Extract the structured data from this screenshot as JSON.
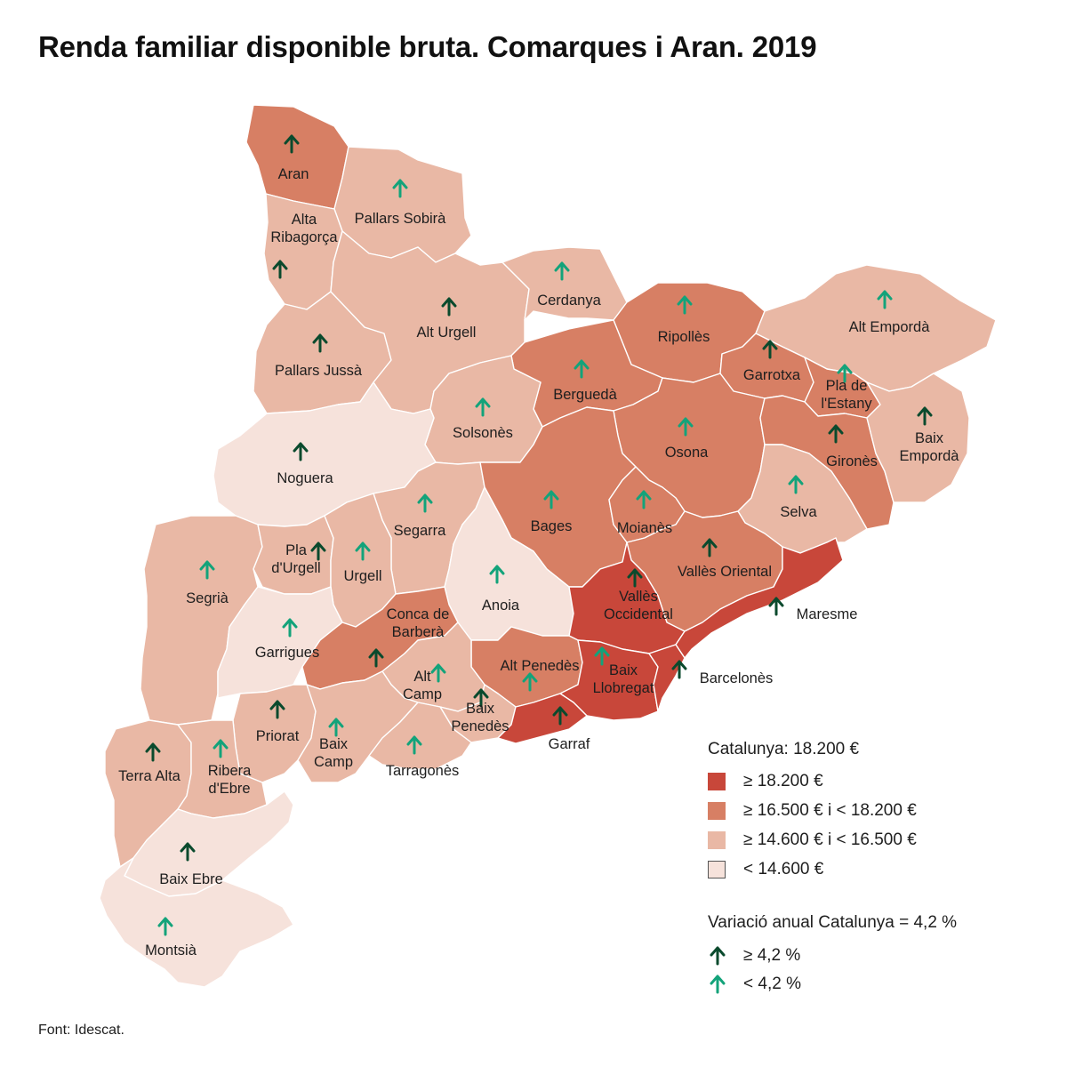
{
  "title": "Renda familiar disponible bruta. Comarques i Aran. 2019",
  "source": "Font: Idescat.",
  "colors": {
    "c1": "#c8473a",
    "c2": "#d77f64",
    "c3": "#e9b8a5",
    "c4": "#f6e2db",
    "arrow_above": "#0a4a2d",
    "arrow_below": "#13a37a",
    "border": "#ffffff"
  },
  "legend": {
    "total": "Catalunya: 18.200 €",
    "classes": [
      {
        "key": "c1",
        "label": "≥ 18.200 €"
      },
      {
        "key": "c2",
        "label": "≥ 16.500 € i < 18.200 €"
      },
      {
        "key": "c3",
        "label": "≥ 14.600 € i < 16.500 €"
      },
      {
        "key": "c4",
        "label": "< 14.600 €"
      }
    ],
    "variation_title": "Variació anual Catalunya = 4,2 %",
    "arrows": [
      {
        "key": "above",
        "label": "≥ 4,2 %"
      },
      {
        "key": "below",
        "label": "< 4,2 %"
      }
    ]
  },
  "regions": [
    {
      "name": "Aran",
      "lines": [
        "Aran"
      ],
      "cls": "c2",
      "arrow": "above"
    },
    {
      "name": "Pallars Sobirà",
      "lines": [
        "Pallars Sobirà"
      ],
      "cls": "c3",
      "arrow": "below"
    },
    {
      "name": "Alta Ribagorça",
      "lines": [
        "Alta",
        "Ribagorça"
      ],
      "cls": "c3",
      "arrow": "above"
    },
    {
      "name": "Pallars Jussà",
      "lines": [
        "Pallars Jussà"
      ],
      "cls": "c3",
      "arrow": "above"
    },
    {
      "name": "Alt Urgell",
      "lines": [
        "Alt Urgell"
      ],
      "cls": "c3",
      "arrow": "above"
    },
    {
      "name": "Cerdanya",
      "lines": [
        "Cerdanya"
      ],
      "cls": "c3",
      "arrow": "below"
    },
    {
      "name": "Ripollès",
      "lines": [
        "Ripollès"
      ],
      "cls": "c2",
      "arrow": "below"
    },
    {
      "name": "Alt Empordà",
      "lines": [
        "Alt Empordà"
      ],
      "cls": "c3",
      "arrow": "below"
    },
    {
      "name": "Berguedà",
      "lines": [
        "Berguedà"
      ],
      "cls": "c2",
      "arrow": "below"
    },
    {
      "name": "Garrotxa",
      "lines": [
        "Garrotxa"
      ],
      "cls": "c2",
      "arrow": "above"
    },
    {
      "name": "Pla de l'Estany",
      "lines": [
        "Pla de",
        "l'Estany"
      ],
      "cls": "c2",
      "arrow": "below"
    },
    {
      "name": "Solsonès",
      "lines": [
        "Solsonès"
      ],
      "cls": "c3",
      "arrow": "below"
    },
    {
      "name": "Osona",
      "lines": [
        "Osona"
      ],
      "cls": "c2",
      "arrow": "below"
    },
    {
      "name": "Gironès",
      "lines": [
        "Gironès"
      ],
      "cls": "c2",
      "arrow": "above"
    },
    {
      "name": "Baix Empordà",
      "lines": [
        "Baix",
        "Empordà"
      ],
      "cls": "c3",
      "arrow": "above"
    },
    {
      "name": "Noguera",
      "lines": [
        "Noguera"
      ],
      "cls": "c4",
      "arrow": "above"
    },
    {
      "name": "Segarra",
      "lines": [
        "Segarra"
      ],
      "cls": "c3",
      "arrow": "below"
    },
    {
      "name": "Bages",
      "lines": [
        "Bages"
      ],
      "cls": "c2",
      "arrow": "below"
    },
    {
      "name": "Moianès",
      "lines": [
        "Moianès"
      ],
      "cls": "c2",
      "arrow": "below"
    },
    {
      "name": "Selva",
      "lines": [
        "Selva"
      ],
      "cls": "c3",
      "arrow": "below"
    },
    {
      "name": "Segrià",
      "lines": [
        "Segrià"
      ],
      "cls": "c3",
      "arrow": "below"
    },
    {
      "name": "Pla d'Urgell",
      "lines": [
        "Pla",
        "d'Urgell"
      ],
      "cls": "c3",
      "arrow": "above"
    },
    {
      "name": "Urgell",
      "lines": [
        "Urgell"
      ],
      "cls": "c3",
      "arrow": "below"
    },
    {
      "name": "Anoia",
      "lines": [
        "Anoia"
      ],
      "cls": "c4",
      "arrow": "below"
    },
    {
      "name": "Vallès Oriental",
      "lines": [
        "Vallès Oriental"
      ],
      "cls": "c2",
      "arrow": "above"
    },
    {
      "name": "Vallès Occidental",
      "lines": [
        "Vallès",
        "Occidental"
      ],
      "cls": "c1",
      "arrow": "above"
    },
    {
      "name": "Maresme",
      "lines": [
        "Maresme"
      ],
      "cls": "c1",
      "arrow": "above"
    },
    {
      "name": "Garrigues",
      "lines": [
        "Garrigues"
      ],
      "cls": "c4",
      "arrow": "below"
    },
    {
      "name": "Conca de Barberà",
      "lines": [
        "Conca de",
        "Barberà"
      ],
      "cls": "c2",
      "arrow": "above"
    },
    {
      "name": "Alt Penedès",
      "lines": [
        "Alt Penedès"
      ],
      "cls": "c2",
      "arrow": "below"
    },
    {
      "name": "Baix Llobregat",
      "lines": [
        "Baix",
        "Llobregat"
      ],
      "cls": "c1",
      "arrow": "below"
    },
    {
      "name": "Barcelonès",
      "lines": [
        "Barcelonès"
      ],
      "cls": "c1",
      "arrow": "above"
    },
    {
      "name": "Alt Camp",
      "lines": [
        "Alt",
        "Camp"
      ],
      "cls": "c3",
      "arrow": "below"
    },
    {
      "name": "Baix Penedès",
      "lines": [
        "Baix",
        "Penedès"
      ],
      "cls": "c3",
      "arrow": "above"
    },
    {
      "name": "Garraf",
      "lines": [
        "Garraf"
      ],
      "cls": "c1",
      "arrow": "above"
    },
    {
      "name": "Priorat",
      "lines": [
        "Priorat"
      ],
      "cls": "c3",
      "arrow": "above"
    },
    {
      "name": "Baix Camp",
      "lines": [
        "Baix",
        "Camp"
      ],
      "cls": "c3",
      "arrow": "below"
    },
    {
      "name": "Tarragonès",
      "lines": [
        "Tarragonès"
      ],
      "cls": "c3",
      "arrow": "below"
    },
    {
      "name": "Terra Alta",
      "lines": [
        "Terra Alta"
      ],
      "cls": "c3",
      "arrow": "above"
    },
    {
      "name": "Ribera d'Ebre",
      "lines": [
        "Ribera",
        "d'Ebre"
      ],
      "cls": "c3",
      "arrow": "below"
    },
    {
      "name": "Baix Ebre",
      "lines": [
        "Baix Ebre"
      ],
      "cls": "c4",
      "arrow": "above"
    },
    {
      "name": "Montsià",
      "lines": [
        "Montsià"
      ],
      "cls": "c4",
      "arrow": "below"
    }
  ]
}
